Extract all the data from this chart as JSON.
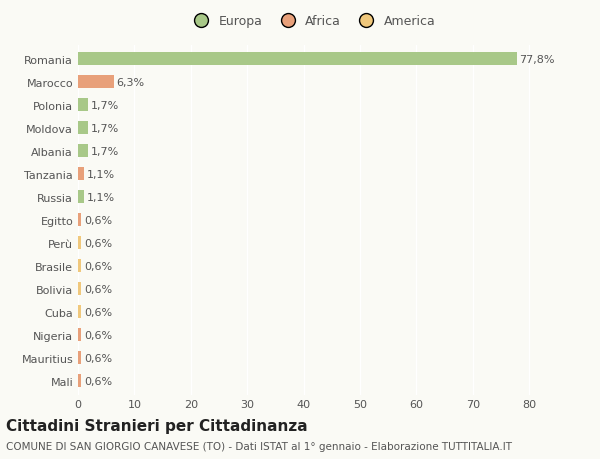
{
  "categories": [
    "Romania",
    "Marocco",
    "Polonia",
    "Moldova",
    "Albania",
    "Tanzania",
    "Russia",
    "Egitto",
    "Perù",
    "Brasile",
    "Bolivia",
    "Cuba",
    "Nigeria",
    "Mauritius",
    "Mali"
  ],
  "values": [
    77.8,
    6.3,
    1.7,
    1.7,
    1.7,
    1.1,
    1.1,
    0.6,
    0.6,
    0.6,
    0.6,
    0.6,
    0.6,
    0.6,
    0.6
  ],
  "labels": [
    "77,8%",
    "6,3%",
    "1,7%",
    "1,7%",
    "1,7%",
    "1,1%",
    "1,1%",
    "0,6%",
    "0,6%",
    "0,6%",
    "0,6%",
    "0,6%",
    "0,6%",
    "0,6%",
    "0,6%"
  ],
  "continent": [
    "Europa",
    "Africa",
    "Europa",
    "Europa",
    "Europa",
    "Africa",
    "Europa",
    "Africa",
    "America",
    "America",
    "America",
    "America",
    "Africa",
    "Africa",
    "Africa"
  ],
  "colors": {
    "Europa": "#a8c888",
    "Africa": "#e8a07a",
    "America": "#f0c87c"
  },
  "title": "Cittadini Stranieri per Cittadinanza",
  "subtitle": "COMUNE DI SAN GIORGIO CANAVESE (TO) - Dati ISTAT al 1° gennaio - Elaborazione TUTTITALIA.IT",
  "xlim": [
    0,
    83
  ],
  "background_color": "#fafaf5",
  "grid_color": "#ffffff",
  "bar_height": 0.55,
  "title_fontsize": 11,
  "subtitle_fontsize": 7.5,
  "label_fontsize": 8,
  "tick_fontsize": 8,
  "legend_fontsize": 9
}
